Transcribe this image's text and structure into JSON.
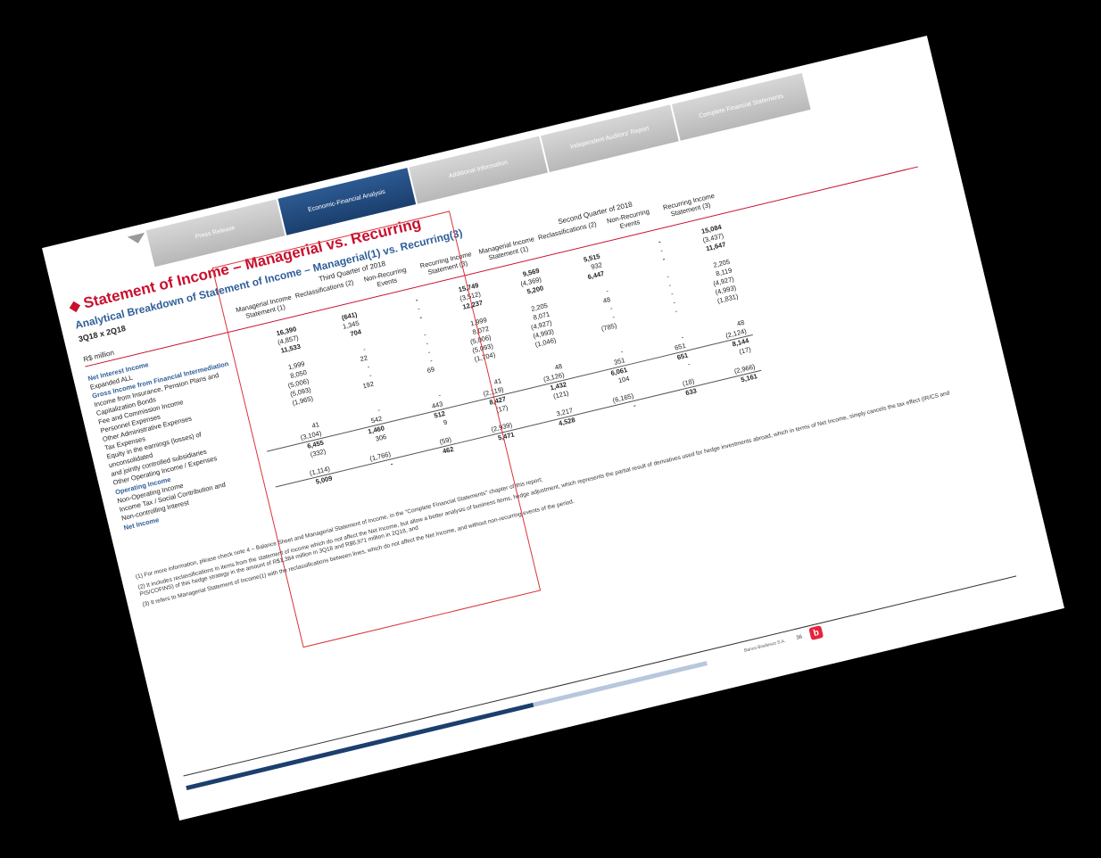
{
  "nav": {
    "tabs": [
      {
        "label": "Press Release"
      },
      {
        "label": "Economic-Financial Analysis"
      },
      {
        "label": "Additional Information"
      },
      {
        "label": "Independent Auditors' Report"
      },
      {
        "label": "Complete Financial Statements"
      }
    ]
  },
  "title": "Statement of Income – Managerial vs. Recurring",
  "subtitle": "Analytical Breakdown of Statement of Income – Managerial(1) vs. Recurring(3)",
  "period": "3Q18 x 2Q18",
  "unit": "R$ million",
  "quarters": [
    "Third Quarter of 2018",
    "Second Quarter of 2018"
  ],
  "columns": [
    "Managerial Income Statement (1)",
    "Reclassifications (2)",
    "Non-Recurring Events",
    "Recurring Income Statement (3)"
  ],
  "rows": [
    {
      "label": "Net Interest Income",
      "style": "sec total",
      "q3": [
        "16,390",
        "(641)",
        "-",
        "15,749"
      ],
      "q2": [
        "9,569",
        "5,515",
        "-",
        "15,084"
      ]
    },
    {
      "label": "Expanded ALL",
      "style": "",
      "q3": [
        "(4,857)",
        "1,345",
        "-",
        "(3,512)"
      ],
      "q2": [
        "(4,369)",
        "932",
        "-",
        "(3,437)"
      ]
    },
    {
      "label": "Gross Income from Financial Intermediation",
      "style": "sec total",
      "q3": [
        "11,533",
        "704",
        "-",
        "12,237"
      ],
      "q2": [
        "5,200",
        "6,447",
        "-",
        "11,647"
      ]
    },
    {
      "label": "Income from Insurance, Pension Plans and",
      "style": "",
      "q3": [
        "",
        "",
        "",
        ""
      ],
      "q2": [
        "",
        "",
        "",
        ""
      ]
    },
    {
      "label": "Capitalization Bonds",
      "style": "",
      "q3": [
        "1,999",
        "-",
        "-",
        "1,999"
      ],
      "q2": [
        "2,205",
        "-",
        "-",
        "2,205"
      ]
    },
    {
      "label": "Fee and Commission Income",
      "style": "",
      "q3": [
        "8,050",
        "22",
        "-",
        "8,072"
      ],
      "q2": [
        "8,071",
        "48",
        "-",
        "8,119"
      ]
    },
    {
      "label": "Personnel Expenses",
      "style": "",
      "q3": [
        "(5,006)",
        "-",
        "-",
        "(5,006)"
      ],
      "q2": [
        "(4,927)",
        "-",
        "-",
        "(4,927)"
      ]
    },
    {
      "label": "Other Administrative Expenses",
      "style": "",
      "q3": [
        "(5,093)",
        "-",
        "-",
        "(5,093)"
      ],
      "q2": [
        "(4,993)",
        "-",
        "-",
        "(4,993)"
      ]
    },
    {
      "label": "Tax Expenses",
      "style": "",
      "q3": [
        "(1,965)",
        "192",
        "69",
        "(1,704)"
      ],
      "q2": [
        "(1,046)",
        "(785)",
        "-",
        "(1,831)"
      ]
    },
    {
      "label": "Equity in the earnings (losses) of",
      "style": "",
      "q3": [
        "",
        "",
        "",
        ""
      ],
      "q2": [
        "",
        "",
        "",
        ""
      ]
    },
    {
      "label": "unconsolidated",
      "style": "",
      "q3": [
        "",
        "",
        "",
        ""
      ],
      "q2": [
        "",
        "",
        "",
        ""
      ]
    },
    {
      "label": "and jointly controlled subsidiaries",
      "style": "",
      "q3": [
        "41",
        "-",
        "-",
        "41"
      ],
      "q2": [
        "48",
        "-",
        "-",
        "48"
      ]
    },
    {
      "label": "Other Operating Income / Expenses",
      "style": "",
      "q3": [
        "(3,104)",
        "542",
        "443",
        "(2,119)"
      ],
      "q2": [
        "(3,126)",
        "351",
        "651",
        "(2,124)"
      ]
    },
    {
      "label": "Operating Income",
      "style": "sec total topline",
      "q3": [
        "6,455",
        "1,460",
        "512",
        "8,427"
      ],
      "q2": [
        "1,432",
        "6,061",
        "651",
        "8,144"
      ]
    },
    {
      "label": "Non-Operating Income",
      "style": "",
      "q3": [
        "(332)",
        "306",
        "9",
        "(17)"
      ],
      "q2": [
        "(121)",
        "104",
        "-",
        "(17)"
      ]
    },
    {
      "label": "Income Tax / Social Contribution and",
      "style": "",
      "q3": [
        "",
        "",
        "",
        ""
      ],
      "q2": [
        "",
        "",
        "",
        ""
      ]
    },
    {
      "label": "Non-controlling Interest",
      "style": "",
      "q3": [
        "(1,114)",
        "(1,766)",
        "(59)",
        "(2,939)"
      ],
      "q2": [
        "3,217",
        "(6,165)",
        "(18)",
        "(2,966)"
      ]
    },
    {
      "label": "Net Income",
      "style": "sec total topline",
      "q3": [
        "5,009",
        "-",
        "462",
        "5,471"
      ],
      "q2": [
        "4,528",
        "-",
        "633",
        "5,161"
      ]
    }
  ],
  "footnotes": [
    "(1) For more information, please check note 4 – Balance Sheet and Managerial Statement of Income, in the \"Complete Financial Statements\" chapter of this report;",
    "(2) It includes reclassifications in items from the statement of income which do not affect the Net Income, but allow a better analysis of business items, hedge adjustment, which represents the partial result of derivatives used for hedge investments abroad, which in terms of Net Income, simply cancels the tax effect (IR/CS and PIS/COFINS) of this hedge strategy in the amount of R$1,384 million in 3Q18 and R$6,971 million in 2Q18, and",
    "(3) It refers to Managerial Statement of Income(1) with the reclassifications between lines, which do not affect the Net Income, and without non-recurring events of the period."
  ],
  "footer": {
    "company": "Banco Bradesco S.A.",
    "page": "36",
    "logo": "b"
  }
}
